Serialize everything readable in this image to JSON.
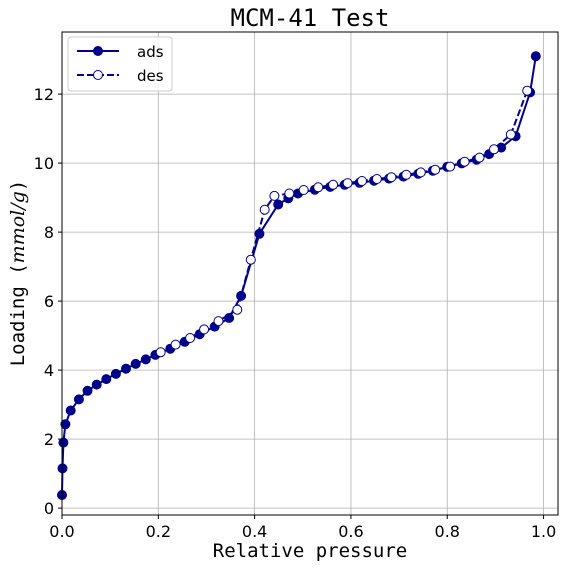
{
  "chart_data": {
    "type": "line",
    "title": "MCM-41 Test",
    "xlabel": "Relative pressure",
    "ylabel": "Loading (mmol/g)",
    "ylabel_main": "Loading (",
    "ylabel_unit": "mmol/g",
    "ylabel_close": ")",
    "xlim": [
      0.0,
      1.03
    ],
    "ylim": [
      -0.2,
      13.8
    ],
    "xticks": [
      0.0,
      0.2,
      0.4,
      0.6,
      0.8,
      1.0
    ],
    "xtick_labels": [
      "0.0",
      "0.2",
      "0.4",
      "0.6",
      "0.8",
      "1.0"
    ],
    "yticks": [
      0,
      2,
      4,
      6,
      8,
      10,
      12
    ],
    "ytick_labels": [
      "0",
      "2",
      "4",
      "6",
      "8",
      "10",
      "12"
    ],
    "grid": true,
    "legend_position": "top-left",
    "color": "#00008b",
    "series": [
      {
        "name": "ads",
        "style": "solid",
        "marker": "filled-circle",
        "x": [
          0.0,
          0.001,
          0.003,
          0.007,
          0.018,
          0.035,
          0.053,
          0.072,
          0.092,
          0.112,
          0.133,
          0.153,
          0.174,
          0.194,
          0.225,
          0.255,
          0.286,
          0.317,
          0.347,
          0.372,
          0.41,
          0.449,
          0.47,
          0.49,
          0.525,
          0.557,
          0.587,
          0.618,
          0.648,
          0.679,
          0.709,
          0.74,
          0.77,
          0.8,
          0.83,
          0.861,
          0.887,
          0.912,
          0.942,
          0.972,
          0.984
        ],
        "y": [
          0.38,
          1.15,
          1.9,
          2.43,
          2.83,
          3.15,
          3.4,
          3.58,
          3.74,
          3.89,
          4.04,
          4.18,
          4.31,
          4.44,
          4.62,
          4.82,
          5.04,
          5.26,
          5.51,
          6.15,
          7.95,
          8.8,
          8.98,
          9.12,
          9.23,
          9.31,
          9.37,
          9.43,
          9.49,
          9.55,
          9.61,
          9.69,
          9.78,
          9.89,
          9.99,
          10.1,
          10.26,
          10.45,
          10.78,
          12.05,
          13.1
        ]
      },
      {
        "name": "des",
        "style": "dashed",
        "marker": "open-circle",
        "x": [
          0.966,
          0.932,
          0.897,
          0.867,
          0.836,
          0.806,
          0.775,
          0.745,
          0.715,
          0.684,
          0.654,
          0.623,
          0.593,
          0.563,
          0.532,
          0.502,
          0.472,
          0.441,
          0.421,
          0.392,
          0.364,
          0.325,
          0.295,
          0.266,
          0.236,
          0.205
        ],
        "y": [
          12.1,
          10.83,
          10.4,
          10.16,
          10.04,
          9.9,
          9.81,
          9.73,
          9.66,
          9.59,
          9.54,
          9.48,
          9.42,
          9.37,
          9.3,
          9.22,
          9.12,
          9.05,
          8.65,
          7.2,
          5.75,
          5.42,
          5.18,
          4.93,
          4.74,
          4.52
        ]
      }
    ]
  }
}
